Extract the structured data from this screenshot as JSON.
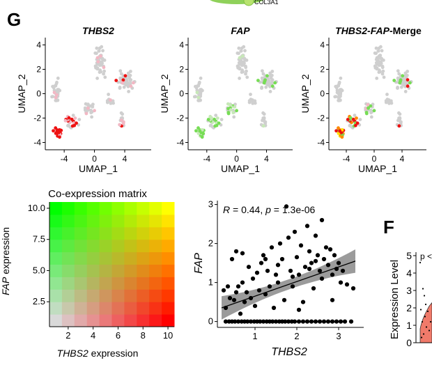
{
  "header": {
    "cutoff_label": "COL3A1"
  },
  "panel_g": {
    "letter": "G",
    "umaps": [
      {
        "title": "THBS2",
        "xlabel": "UMAP_1",
        "ylabel": "UMAP_2",
        "mode": "thbs2"
      },
      {
        "title": "FAP",
        "xlabel": "UMAP_1",
        "ylabel": "UMAP_2",
        "mode": "fap"
      },
      {
        "title": "THBS2-FAP",
        "title_suffix": "-Merge",
        "xlabel": "UMAP_1",
        "ylabel": "UMAP_2",
        "mode": "merge"
      }
    ],
    "umap_axis": {
      "x_ticks": [
        "-4",
        "0",
        "4"
      ],
      "y_ticks": [
        "4",
        "2",
        "0",
        "-2",
        "-4"
      ],
      "xlim": [
        -6.5,
        7.5
      ],
      "ylim": [
        -4.6,
        4.6
      ]
    },
    "colors": {
      "grey": "#cfcfcf",
      "red": "#ee1111",
      "pink": "#f2b8c4",
      "green": "#77dd55",
      "lightgreen": "#c7e8b8",
      "orange": "#ff8800",
      "yellow": "#ffe000"
    },
    "coexpression": {
      "title": "Co-expression matrix",
      "xlabel_italic": "THBS2",
      "xlabel_rest": " expression",
      "ylabel_italic": "FAP",
      "ylabel_rest": " expression",
      "x_ticks": [
        "2",
        "4",
        "6",
        "8",
        "10"
      ],
      "y_ticks": [
        "10.0",
        "7.5",
        "5.0",
        "2.5"
      ],
      "grid_size": 10
    },
    "scatter": {
      "annotation_r": "R",
      "annotation_rest": " = 0.44, ",
      "annotation_p": "p",
      "annotation_p_rest": " = 1.3e-06",
      "xlabel": "THBS2",
      "ylabel": "FAP",
      "x_ticks": [
        "1",
        "2",
        "3"
      ],
      "y_ticks": [
        "3",
        "2",
        "1",
        "0"
      ]
    }
  },
  "panel_f": {
    "letter": "F",
    "ylabel": "Expression Level",
    "y_ticks": [
      "5",
      "4",
      "3",
      "2",
      "1",
      "0"
    ],
    "pvalue_prefix": "p <"
  },
  "chart_data": [
    {
      "type": "scatter",
      "name": "THBS2 UMAP",
      "xlabel": "UMAP_1",
      "ylabel": "UMAP_2",
      "xlim": [
        -6.5,
        7.5
      ],
      "ylim": [
        -4.6,
        4.6
      ]
    },
    {
      "type": "scatter",
      "name": "FAP UMAP",
      "xlabel": "UMAP_1",
      "ylabel": "UMAP_2",
      "xlim": [
        -6.5,
        7.5
      ],
      "ylim": [
        -4.6,
        4.6
      ]
    },
    {
      "type": "scatter",
      "name": "THBS2-FAP-Merge UMAP",
      "xlabel": "UMAP_1",
      "ylabel": "UMAP_2",
      "xlim": [
        -6.5,
        7.5
      ],
      "ylim": [
        -4.6,
        4.6
      ]
    },
    {
      "type": "heatmap",
      "title": "Co-expression matrix",
      "xlabel": "THBS2 expression",
      "ylabel": "FAP expression",
      "x_range": [
        1,
        10
      ],
      "y_range": [
        1,
        10
      ],
      "grid": 10,
      "colors": {
        "low": "#d9d9d9",
        "x_high": "#ff0000",
        "y_high": "#00ff00",
        "both_high": "#ffff00"
      }
    },
    {
      "type": "scatter",
      "xlabel": "THBS2",
      "ylabel": "FAP",
      "xlim": [
        0.1,
        3.6
      ],
      "ylim": [
        -0.15,
        3.1
      ],
      "annotation": "R = 0.44, p = 1.3e-06",
      "regression": {
        "x": [
          0.2,
          3.4
        ],
        "y": [
          0.35,
          1.55
        ]
      },
      "points": [
        [
          0.25,
          0.8
        ],
        [
          0.3,
          0.35
        ],
        [
          0.35,
          0.9
        ],
        [
          0.4,
          0.6
        ],
        [
          0.45,
          1.6
        ],
        [
          0.5,
          0.55
        ],
        [
          0.55,
          1.8
        ],
        [
          0.6,
          0.9
        ],
        [
          0.65,
          0.2
        ],
        [
          0.7,
          1.0
        ],
        [
          0.75,
          0.5
        ],
        [
          0.8,
          0.75
        ],
        [
          0.85,
          1.4
        ],
        [
          0.9,
          0.6
        ],
        [
          0.95,
          1.1
        ],
        [
          1.0,
          0.4
        ],
        [
          1.05,
          1.25
        ],
        [
          1.1,
          0.8
        ],
        [
          1.15,
          1.5
        ],
        [
          1.2,
          1.7
        ],
        [
          1.25,
          0.7
        ],
        [
          1.3,
          1.3
        ],
        [
          1.35,
          0.9
        ],
        [
          1.4,
          1.9
        ],
        [
          1.45,
          0.35
        ],
        [
          1.5,
          1.2
        ],
        [
          1.55,
          1.0
        ],
        [
          1.6,
          2.0
        ],
        [
          1.65,
          1.6
        ],
        [
          1.7,
          0.55
        ],
        [
          1.75,
          2.95
        ],
        [
          1.8,
          2.15
        ],
        [
          1.85,
          1.3
        ],
        [
          1.9,
          0.9
        ],
        [
          1.95,
          2.3
        ],
        [
          2.0,
          1.65
        ],
        [
          2.05,
          1.2
        ],
        [
          2.1,
          1.95
        ],
        [
          2.15,
          0.5
        ],
        [
          2.2,
          1.4
        ],
        [
          2.25,
          2.45
        ],
        [
          2.3,
          1.8
        ],
        [
          2.35,
          1.5
        ],
        [
          2.4,
          0.85
        ],
        [
          2.45,
          2.2
        ],
        [
          2.5,
          1.7
        ],
        [
          2.55,
          1.3
        ],
        [
          2.6,
          1.1
        ],
        [
          2.65,
          1.6
        ],
        [
          2.7,
          1.9
        ],
        [
          2.75,
          1.45
        ],
        [
          2.8,
          1.85
        ],
        [
          2.85,
          1.2
        ],
        [
          2.9,
          1.7
        ],
        [
          2.95,
          1.35
        ],
        [
          3.0,
          1.5
        ],
        [
          3.05,
          1.0
        ],
        [
          3.1,
          1.3
        ],
        [
          3.2,
          0.95
        ],
        [
          3.35,
          0.85
        ],
        [
          2.6,
          2.6
        ],
        [
          1.25,
          1.6
        ],
        [
          0.7,
          1.75
        ],
        [
          2.05,
          0.3
        ],
        [
          2.3,
          1.35
        ],
        [
          1.55,
          1.45
        ],
        [
          2.85,
          0.55
        ],
        [
          1.9,
          1.15
        ],
        [
          0.55,
          0.75
        ],
        [
          2.45,
          1.55
        ],
        [
          0.3,
          0
        ],
        [
          0.38,
          0
        ],
        [
          0.45,
          0
        ],
        [
          0.52,
          0
        ],
        [
          0.6,
          0
        ],
        [
          0.68,
          0
        ],
        [
          0.75,
          0
        ],
        [
          0.82,
          0
        ],
        [
          0.9,
          0
        ],
        [
          0.98,
          0
        ],
        [
          1.05,
          0
        ],
        [
          1.12,
          0
        ],
        [
          1.2,
          0
        ],
        [
          1.28,
          0
        ],
        [
          1.35,
          0
        ],
        [
          1.42,
          0
        ],
        [
          1.5,
          0
        ],
        [
          1.58,
          0
        ],
        [
          1.65,
          0
        ],
        [
          1.72,
          0
        ],
        [
          1.8,
          0
        ],
        [
          1.88,
          0
        ],
        [
          1.95,
          0
        ],
        [
          2.05,
          0
        ],
        [
          2.15,
          0
        ],
        [
          2.25,
          0
        ],
        [
          2.35,
          0
        ],
        [
          2.45,
          0
        ],
        [
          2.55,
          0
        ],
        [
          2.65,
          0
        ],
        [
          2.75,
          0
        ],
        [
          2.85,
          0
        ],
        [
          2.95,
          0
        ],
        [
          3.05,
          0
        ],
        [
          3.15,
          0
        ],
        [
          3.3,
          0
        ]
      ]
    }
  ]
}
